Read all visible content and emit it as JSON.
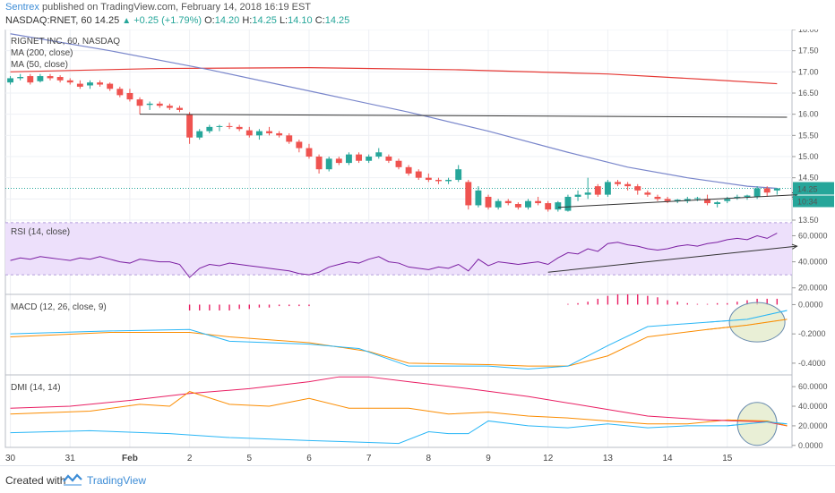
{
  "header": {
    "publisher": "Sentrex",
    "published_text": "published on TradingView.com, February 14, 2018 16:19 EST",
    "symbol": "NASDAQ:RNET, 60",
    "last": "14.25",
    "change": "+0.25 (+1.79%)",
    "open_label": "O:",
    "open": "14.20",
    "high_label": "H:",
    "high": "14.25",
    "low_label": "L:",
    "low": "14.10",
    "close_label": "C:",
    "close": "14.25"
  },
  "footer": {
    "created_with": "Created with",
    "brand": "TradingView"
  },
  "colors": {
    "up": "#26a69a",
    "down": "#ef5350",
    "ma200": "#e53935",
    "ma50": "#7986cb",
    "rsi": "#7b1fa2",
    "rsi_band": "#ede0fb",
    "macd": "#29b6f6",
    "signal": "#fb8c00",
    "hist": "#e91e63",
    "plus_di": "#29b6f6",
    "minus_di": "#fb8c00",
    "adx": "#e91e63",
    "highlight_fill": "#dfe8c4",
    "highlight_stroke": "#6a8caf",
    "grid": "#eef0f4"
  },
  "chart_data": [
    {
      "type": "candlestick",
      "title": "RIGNET INC, 60, NASDAQ",
      "legend": [
        "MA (200, close)",
        "MA (50, close)"
      ],
      "ylim": [
        13.5,
        18.0
      ],
      "yticks": [
        "18.00",
        "17.50",
        "17.00",
        "16.50",
        "16.00",
        "15.50",
        "15.00",
        "14.50",
        "14.00",
        "13.50"
      ],
      "last_price_label": "14.25",
      "countdown_label": "10:34",
      "x_categories": [
        "30",
        "31",
        "Feb",
        "2",
        "5",
        "6",
        "7",
        "8",
        "9",
        "12",
        "13",
        "14",
        "15"
      ],
      "candles": [
        [
          16.75,
          16.9,
          16.7,
          16.85
        ],
        [
          16.85,
          16.95,
          16.8,
          16.88
        ],
        [
          16.9,
          16.95,
          16.7,
          16.75
        ],
        [
          16.78,
          16.95,
          16.75,
          16.9
        ],
        [
          16.9,
          16.95,
          16.8,
          16.85
        ],
        [
          16.88,
          16.92,
          16.75,
          16.8
        ],
        [
          16.8,
          16.85,
          16.7,
          16.75
        ],
        [
          16.72,
          16.8,
          16.6,
          16.65
        ],
        [
          16.68,
          16.8,
          16.6,
          16.75
        ],
        [
          16.75,
          16.8,
          16.65,
          16.7
        ],
        [
          16.72,
          16.75,
          16.55,
          16.6
        ],
        [
          16.6,
          16.65,
          16.4,
          16.45
        ],
        [
          16.5,
          16.6,
          16.3,
          16.35
        ],
        [
          16.35,
          16.4,
          16.0,
          16.2
        ],
        [
          16.22,
          16.3,
          16.1,
          16.25
        ],
        [
          16.25,
          16.3,
          16.15,
          16.2
        ],
        [
          16.2,
          16.25,
          16.1,
          16.15
        ],
        [
          16.15,
          16.2,
          16.05,
          16.1
        ],
        [
          16.0,
          16.05,
          15.3,
          15.45
        ],
        [
          15.45,
          15.65,
          15.4,
          15.6
        ],
        [
          15.6,
          15.75,
          15.55,
          15.7
        ],
        [
          15.7,
          15.75,
          15.6,
          15.72
        ],
        [
          15.72,
          15.8,
          15.65,
          15.7
        ],
        [
          15.7,
          15.75,
          15.6,
          15.65
        ],
        [
          15.62,
          15.7,
          15.45,
          15.5
        ],
        [
          15.5,
          15.65,
          15.4,
          15.6
        ],
        [
          15.6,
          15.7,
          15.5,
          15.55
        ],
        [
          15.55,
          15.6,
          15.45,
          15.5
        ],
        [
          15.5,
          15.55,
          15.3,
          15.35
        ],
        [
          15.35,
          15.4,
          15.1,
          15.2
        ],
        [
          15.2,
          15.3,
          14.95,
          15.0
        ],
        [
          15.0,
          15.05,
          14.6,
          14.7
        ],
        [
          14.7,
          15.0,
          14.65,
          14.95
        ],
        [
          14.95,
          15.0,
          14.8,
          14.85
        ],
        [
          14.85,
          15.1,
          14.8,
          15.05
        ],
        [
          15.05,
          15.1,
          14.85,
          14.9
        ],
        [
          14.9,
          15.05,
          14.85,
          15.0
        ],
        [
          15.0,
          15.2,
          14.95,
          15.1
        ],
        [
          15.0,
          15.05,
          14.85,
          14.9
        ],
        [
          14.9,
          14.95,
          14.7,
          14.75
        ],
        [
          14.75,
          14.8,
          14.55,
          14.6
        ],
        [
          14.65,
          14.7,
          14.45,
          14.5
        ],
        [
          14.5,
          14.6,
          14.4,
          14.45
        ],
        [
          14.45,
          14.5,
          14.35,
          14.42
        ],
        [
          14.42,
          14.5,
          14.35,
          14.45
        ],
        [
          14.45,
          14.8,
          14.4,
          14.7
        ],
        [
          14.4,
          14.45,
          13.75,
          13.85
        ],
        [
          13.85,
          14.3,
          13.8,
          14.2
        ],
        [
          14.05,
          14.1,
          13.75,
          13.8
        ],
        [
          13.8,
          14.0,
          13.75,
          13.95
        ],
        [
          13.95,
          14.0,
          13.85,
          13.9
        ],
        [
          13.88,
          13.92,
          13.75,
          13.8
        ],
        [
          13.8,
          14.0,
          13.75,
          13.95
        ],
        [
          13.95,
          14.05,
          13.85,
          13.9
        ],
        [
          13.9,
          13.95,
          13.7,
          13.75
        ],
        [
          13.75,
          13.95,
          13.7,
          13.92
        ],
        [
          13.72,
          14.1,
          13.7,
          14.05
        ],
        [
          14.05,
          14.2,
          13.95,
          14.1
        ],
        [
          14.1,
          14.5,
          14.0,
          14.15
        ],
        [
          14.3,
          14.35,
          14.05,
          14.1
        ],
        [
          14.1,
          14.45,
          14.05,
          14.4
        ],
        [
          14.4,
          14.45,
          14.3,
          14.35
        ],
        [
          14.35,
          14.4,
          14.2,
          14.3
        ],
        [
          14.3,
          14.35,
          14.1,
          14.2
        ],
        [
          14.15,
          14.2,
          14.05,
          14.1
        ],
        [
          14.05,
          14.1,
          13.95,
          14.0
        ],
        [
          14.0,
          14.05,
          13.9,
          13.95
        ],
        [
          13.95,
          14.0,
          13.9,
          13.98
        ],
        [
          13.95,
          14.05,
          13.9,
          14.0
        ],
        [
          14.0,
          14.05,
          13.95,
          14.02
        ],
        [
          14.0,
          14.1,
          13.85,
          13.9
        ],
        [
          13.88,
          13.95,
          13.8,
          13.92
        ],
        [
          13.95,
          14.05,
          13.9,
          14.0
        ],
        [
          14.02,
          14.1,
          13.98,
          14.05
        ],
        [
          14.05,
          14.1,
          13.98,
          14.08
        ],
        [
          14.05,
          14.3,
          14.0,
          14.25
        ],
        [
          14.25,
          14.3,
          14.05,
          14.15
        ],
        [
          14.2,
          14.25,
          14.1,
          14.25
        ]
      ],
      "ma200": [
        [
          0,
          17.0
        ],
        [
          15,
          17.08
        ],
        [
          30,
          17.1
        ],
        [
          45,
          17.05
        ],
        [
          60,
          16.95
        ],
        [
          70,
          16.82
        ],
        [
          77,
          16.72
        ]
      ],
      "ma50": [
        [
          0,
          17.9
        ],
        [
          10,
          17.5
        ],
        [
          20,
          17.05
        ],
        [
          30,
          16.55
        ],
        [
          40,
          16.05
        ],
        [
          48,
          15.6
        ],
        [
          56,
          15.1
        ],
        [
          62,
          14.75
        ],
        [
          68,
          14.5
        ],
        [
          74,
          14.3
        ],
        [
          77,
          14.25
        ]
      ],
      "annotations": [
        {
          "type": "resistance-line",
          "from": [
            13,
            16.0
          ],
          "to": [
            78,
            15.93
          ]
        },
        {
          "type": "support-arrow",
          "from": [
            55,
            13.8
          ],
          "to": [
            79,
            14.1
          ]
        }
      ]
    },
    {
      "type": "line",
      "title": "RSI (14, close)",
      "ylim": [
        15,
        72
      ],
      "yticks": [
        "60.0000",
        "40.0000",
        "20.0000"
      ],
      "band": [
        30,
        70
      ],
      "values": [
        41,
        43,
        42,
        44,
        43,
        42,
        41,
        43,
        42,
        44,
        42,
        40,
        39,
        42,
        41,
        40,
        40,
        38,
        28,
        35,
        38,
        37,
        39,
        38,
        37,
        36,
        35,
        34,
        33,
        31,
        30,
        32,
        36,
        38,
        40,
        39,
        42,
        44,
        40,
        39,
        36,
        35,
        34,
        36,
        35,
        38,
        33,
        42,
        37,
        40,
        39,
        38,
        39,
        40,
        38,
        43,
        47,
        46,
        50,
        48,
        54,
        55,
        53,
        52,
        50,
        49,
        50,
        52,
        53,
        52,
        54,
        55,
        57,
        58,
        57,
        60,
        58,
        62
      ],
      "annotations": [
        {
          "type": "trend-arrow",
          "from": [
            54,
            32
          ],
          "to": [
            79,
            52
          ]
        }
      ]
    },
    {
      "type": "macd",
      "title": "MACD (12, 26, close, 9)",
      "ylim": [
        -0.48,
        0.07
      ],
      "yticks": [
        "0.0000",
        "-0.2000",
        "-0.4000"
      ],
      "macd": [
        [
          0,
          -0.2
        ],
        [
          10,
          -0.18
        ],
        [
          18,
          -0.17
        ],
        [
          22,
          -0.25
        ],
        [
          30,
          -0.27
        ],
        [
          35,
          -0.3
        ],
        [
          40,
          -0.42
        ],
        [
          48,
          -0.42
        ],
        [
          52,
          -0.44
        ],
        [
          56,
          -0.42
        ],
        [
          60,
          -0.28
        ],
        [
          64,
          -0.15
        ],
        [
          70,
          -0.12
        ],
        [
          74,
          -0.1
        ],
        [
          78,
          -0.04
        ]
      ],
      "signal": [
        [
          0,
          -0.22
        ],
        [
          10,
          -0.19
        ],
        [
          18,
          -0.19
        ],
        [
          22,
          -0.22
        ],
        [
          30,
          -0.26
        ],
        [
          36,
          -0.32
        ],
        [
          40,
          -0.4
        ],
        [
          48,
          -0.41
        ],
        [
          52,
          -0.42
        ],
        [
          56,
          -0.42
        ],
        [
          60,
          -0.35
        ],
        [
          64,
          -0.22
        ],
        [
          70,
          -0.17
        ],
        [
          74,
          -0.14
        ],
        [
          78,
          -0.1
        ]
      ],
      "histogram": [
        0,
        0,
        0,
        0,
        0,
        0,
        0,
        0,
        0,
        0,
        0,
        0,
        0,
        0,
        0,
        0,
        0,
        0,
        -0.04,
        -0.04,
        -0.04,
        -0.04,
        -0.04,
        -0.03,
        -0.03,
        -0.02,
        -0.02,
        -0.01,
        -0.01,
        -0.01,
        -0.01,
        0,
        0,
        0,
        0,
        0,
        0,
        0,
        0,
        0,
        0,
        0,
        0,
        0,
        0,
        0,
        0,
        0,
        0,
        0,
        0,
        0,
        0,
        0,
        0,
        0,
        0.005,
        0.01,
        0.02,
        0.04,
        0.06,
        0.07,
        0.07,
        0.07,
        0.06,
        0.05,
        0.03,
        0.02,
        0.01,
        0.005,
        0.005,
        0.01,
        0.01,
        0.02,
        0.03,
        0.04,
        0.04,
        0.04
      ],
      "highlight": [
        75,
        -0.12
      ]
    },
    {
      "type": "line",
      "title": "DMI (14, 14)",
      "ylim": [
        -2,
        72
      ],
      "yticks": [
        "60.0000",
        "40.0000",
        "20.0000",
        "0.0000"
      ],
      "plus_di": [
        [
          0,
          13
        ],
        [
          8,
          15
        ],
        [
          16,
          12
        ],
        [
          22,
          8
        ],
        [
          30,
          5
        ],
        [
          36,
          3
        ],
        [
          39,
          2
        ],
        [
          42,
          14
        ],
        [
          44,
          12
        ],
        [
          46,
          12
        ],
        [
          48,
          25
        ],
        [
          52,
          20
        ],
        [
          56,
          18
        ],
        [
          60,
          22
        ],
        [
          64,
          18
        ],
        [
          68,
          20
        ],
        [
          72,
          20
        ],
        [
          76,
          24
        ],
        [
          78,
          22
        ]
      ],
      "minus_di": [
        [
          0,
          32
        ],
        [
          8,
          35
        ],
        [
          13,
          42
        ],
        [
          16,
          40
        ],
        [
          18,
          55
        ],
        [
          22,
          42
        ],
        [
          26,
          40
        ],
        [
          30,
          48
        ],
        [
          34,
          38
        ],
        [
          40,
          38
        ],
        [
          44,
          32
        ],
        [
          48,
          34
        ],
        [
          52,
          30
        ],
        [
          56,
          28
        ],
        [
          60,
          25
        ],
        [
          64,
          22
        ],
        [
          68,
          22
        ],
        [
          72,
          26
        ],
        [
          76,
          25
        ],
        [
          78,
          20
        ]
      ],
      "adx": [
        [
          0,
          38
        ],
        [
          6,
          40
        ],
        [
          12,
          46
        ],
        [
          18,
          53
        ],
        [
          24,
          58
        ],
        [
          30,
          65
        ],
        [
          33,
          70
        ],
        [
          36,
          70
        ],
        [
          40,
          65
        ],
        [
          46,
          58
        ],
        [
          52,
          50
        ],
        [
          58,
          40
        ],
        [
          64,
          30
        ],
        [
          70,
          26
        ],
        [
          76,
          24
        ],
        [
          78,
          20
        ]
      ],
      "highlight": [
        75,
        22
      ]
    }
  ]
}
